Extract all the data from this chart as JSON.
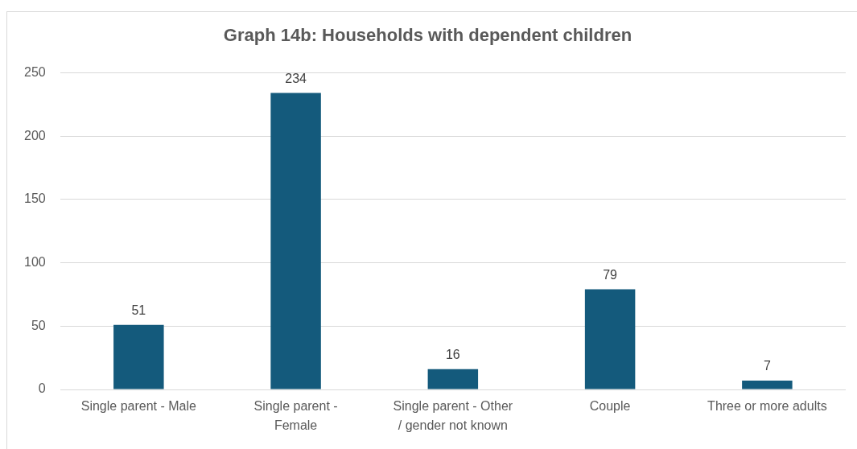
{
  "chart_data": {
    "type": "bar",
    "title": "Graph 14b: Households with dependent children",
    "categories": [
      "Single parent - Male",
      "Single parent - Female",
      "Single parent - Other / gender not known",
      "Couple",
      "Three or more adults"
    ],
    "values": [
      51,
      234,
      16,
      79,
      7
    ],
    "color": "#145a7c",
    "ylim": [
      0,
      250
    ],
    "yticks": [
      0,
      50,
      100,
      150,
      200,
      250
    ],
    "grid": "y",
    "data_labels": true
  }
}
